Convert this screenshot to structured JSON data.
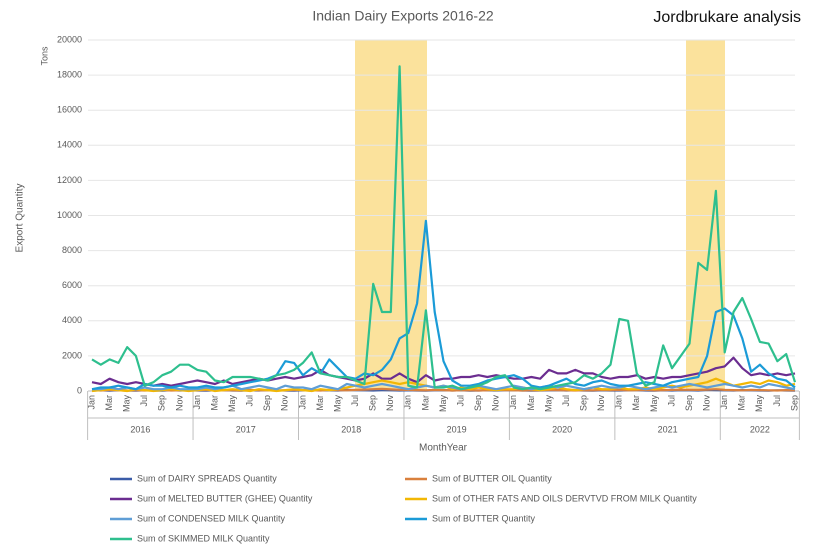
{
  "chart_data": {
    "type": "line",
    "title": "Indian Dairy Exports 2016-22",
    "annotation": "Jordbrukare analysis",
    "y_label": "Export Quantity",
    "y_unit": "Tons",
    "x_label": "MonthYear",
    "ylim": [
      0,
      20000
    ],
    "yticks": [
      0,
      2000,
      4000,
      6000,
      8000,
      10000,
      12000,
      14000,
      16000,
      18000,
      20000
    ],
    "grid": true,
    "categories": [
      "Jan",
      null,
      "Mar",
      null,
      "May",
      null,
      "Jul",
      null,
      "Sep",
      null,
      "Nov",
      null,
      "Jan",
      null,
      "Mar",
      null,
      "May",
      null,
      "Jul",
      null,
      "Sep",
      null,
      "Nov",
      null,
      "Jan",
      null,
      "Mar",
      null,
      "May",
      null,
      "Jul",
      null,
      "Sep",
      null,
      "Nov",
      null,
      "Jan",
      null,
      "Mar",
      null,
      "May",
      null,
      "Jul",
      null,
      "Sep",
      null,
      "Nov",
      null,
      "Jan",
      null,
      "Mar",
      null,
      "May",
      null,
      "Jul",
      null,
      "Sep",
      null,
      "Nov",
      null,
      "Jan",
      null,
      "Mar",
      null,
      "May",
      null,
      "Jul",
      null,
      "Sep",
      null,
      "Nov",
      null,
      "Jan",
      null,
      "Mar",
      null,
      "May",
      null,
      "Jul",
      null,
      "Sep"
    ],
    "x_groups": [
      "2016",
      "2017",
      "2018",
      "2019",
      "2020",
      "2021",
      "2022"
    ],
    "series": [
      {
        "name": "Sum of DAIRY SPREADS Quantity",
        "color": "#3b5ca8",
        "values": [
          30,
          40,
          20,
          50,
          30,
          20,
          40,
          30,
          20,
          50,
          30,
          40,
          30,
          20,
          40,
          50,
          30,
          20,
          40,
          30,
          60,
          40,
          30,
          20,
          40,
          30,
          50,
          40,
          30,
          60,
          50,
          40,
          30,
          50,
          40,
          30,
          40,
          30,
          20,
          40,
          50,
          30,
          40,
          20,
          30,
          40,
          30,
          50,
          40,
          30,
          20,
          30,
          40,
          50,
          30,
          40,
          30,
          20,
          40,
          30,
          30,
          40,
          50,
          30,
          20,
          40,
          30,
          50,
          40,
          30,
          60,
          50,
          40,
          30,
          50,
          40,
          30,
          20,
          40,
          30,
          20
        ]
      },
      {
        "name": "Sum of BUTTER OIL Quantity",
        "color": "#d9803d",
        "values": [
          50,
          30,
          60,
          40,
          20,
          50,
          30,
          40,
          60,
          30,
          40,
          50,
          40,
          60,
          30,
          50,
          40,
          30,
          60,
          40,
          50,
          30,
          40,
          60,
          50,
          40,
          30,
          60,
          50,
          40,
          60,
          80,
          100,
          120,
          90,
          70,
          60,
          50,
          40,
          60,
          50,
          30,
          40,
          50,
          30,
          40,
          60,
          50,
          40,
          30,
          50,
          40,
          60,
          50,
          40,
          30,
          50,
          40,
          60,
          50,
          60,
          40,
          50,
          60,
          40,
          50,
          60,
          80,
          70,
          60,
          80,
          100,
          60,
          50,
          40,
          60,
          50,
          40,
          30,
          50,
          40
        ]
      },
      {
        "name": "Sum of MELTED BUTTER (GHEE) Quantity",
        "color": "#6b2d90",
        "values": [
          500,
          400,
          700,
          500,
          400,
          500,
          400,
          300,
          400,
          300,
          400,
          500,
          600,
          500,
          400,
          600,
          400,
          500,
          600,
          700,
          600,
          700,
          800,
          700,
          800,
          900,
          1200,
          900,
          800,
          700,
          600,
          700,
          1000,
          700,
          700,
          1000,
          700,
          500,
          900,
          600,
          700,
          700,
          800,
          800,
          900,
          800,
          900,
          800,
          700,
          700,
          800,
          700,
          1200,
          1000,
          1000,
          1200,
          1000,
          1000,
          800,
          700,
          800,
          800,
          900,
          700,
          800,
          700,
          800,
          800,
          900,
          1000,
          1100,
          1300,
          1400,
          1900,
          1300,
          900,
          1000,
          900,
          1000,
          900,
          1000
        ]
      },
      {
        "name": "Sum of OTHER FATS AND OILS DERVTVD  FROM MILK Quantity",
        "color": "#f2b705",
        "values": [
          0,
          50,
          100,
          50,
          0,
          100,
          50,
          0,
          50,
          100,
          50,
          0,
          50,
          100,
          0,
          50,
          100,
          50,
          0,
          100,
          50,
          0,
          50,
          100,
          50,
          0,
          100,
          50,
          100,
          200,
          300,
          400,
          500,
          600,
          500,
          400,
          500,
          400,
          300,
          200,
          300,
          100,
          200,
          100,
          200,
          100,
          50,
          100,
          100,
          200,
          100,
          50,
          100,
          200,
          100,
          50,
          100,
          200,
          100,
          100,
          200,
          100,
          100,
          200,
          100,
          200,
          300,
          200,
          300,
          400,
          500,
          700,
          500,
          300,
          400,
          500,
          400,
          600,
          500,
          300,
          400
        ]
      },
      {
        "name": "Sum of CONDENSED MILK Quantity",
        "color": "#5f9ed6",
        "values": [
          100,
          100,
          200,
          100,
          200,
          100,
          200,
          100,
          100,
          200,
          100,
          100,
          100,
          200,
          100,
          200,
          300,
          100,
          200,
          300,
          200,
          100,
          300,
          200,
          200,
          100,
          300,
          200,
          100,
          400,
          300,
          200,
          300,
          400,
          300,
          200,
          100,
          200,
          300,
          200,
          300,
          200,
          100,
          200,
          300,
          200,
          100,
          200,
          300,
          200,
          100,
          200,
          300,
          200,
          300,
          200,
          100,
          200,
          300,
          200,
          200,
          300,
          200,
          100,
          200,
          300,
          200,
          300,
          400,
          300,
          200,
          300,
          400,
          300,
          200,
          300,
          200,
          400,
          300,
          200,
          100
        ]
      },
      {
        "name": "Sum of BUTTER Quantity",
        "color": "#1b9bd7",
        "values": [
          100,
          200,
          200,
          300,
          200,
          100,
          400,
          300,
          300,
          200,
          300,
          200,
          200,
          300,
          200,
          200,
          300,
          400,
          500,
          600,
          700,
          900,
          1700,
          1600,
          900,
          1300,
          1000,
          1800,
          1300,
          800,
          700,
          1000,
          900,
          1200,
          1800,
          3000,
          3300,
          5000,
          9700,
          4500,
          1700,
          600,
          300,
          300,
          400,
          600,
          700,
          800,
          900,
          700,
          300,
          200,
          300,
          500,
          700,
          400,
          300,
          500,
          600,
          400,
          300,
          300,
          400,
          500,
          400,
          300,
          500,
          600,
          700,
          800,
          2000,
          4500,
          4700,
          4300,
          3000,
          1100,
          1500,
          1000,
          700,
          600,
          200
        ]
      },
      {
        "name": "Sum of SKIMMED MILK Quantity",
        "color": "#2ebf8e",
        "values": [
          1800,
          1500,
          1800,
          1600,
          2500,
          2000,
          300,
          500,
          900,
          1100,
          1500,
          1500,
          1200,
          1100,
          600,
          500,
          800,
          800,
          800,
          700,
          600,
          900,
          1000,
          1200,
          1600,
          2200,
          1000,
          900,
          800,
          800,
          600,
          400,
          6100,
          4500,
          4500,
          18500,
          300,
          200,
          4600,
          200,
          200,
          300,
          100,
          200,
          300,
          500,
          800,
          900,
          200,
          100,
          200,
          100,
          200,
          300,
          400,
          500,
          900,
          700,
          1000,
          1500,
          4100,
          4000,
          1000,
          300,
          500,
          2600,
          1300,
          2000,
          2700,
          7300,
          6900,
          11400,
          2200,
          4500,
          5300,
          4100,
          2800,
          2700,
          1700,
          2100,
          500
        ]
      }
    ]
  }
}
